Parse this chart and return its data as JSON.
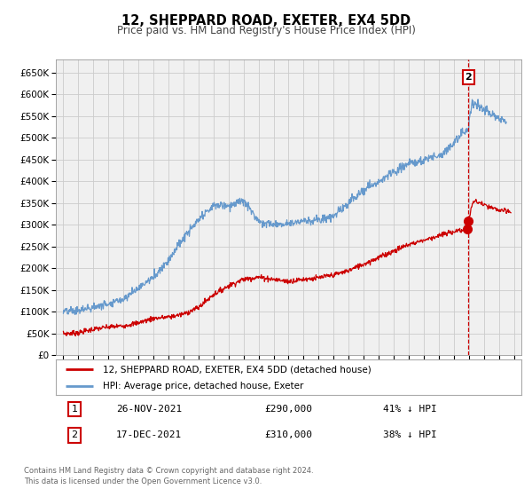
{
  "title": "12, SHEPPARD ROAD, EXETER, EX4 5DD",
  "subtitle": "Price paid vs. HM Land Registry's House Price Index (HPI)",
  "legend_line1": "12, SHEPPARD ROAD, EXETER, EX4 5DD (detached house)",
  "legend_line2": "HPI: Average price, detached house, Exeter",
  "footnote1": "Contains HM Land Registry data © Crown copyright and database right 2024.",
  "footnote2": "This data is licensed under the Open Government Licence v3.0.",
  "annotation_label1": "1",
  "annotation_date1": "26-NOV-2021",
  "annotation_price1": "£290,000",
  "annotation_pct1": "41% ↓ HPI",
  "annotation_label2": "2",
  "annotation_date2": "17-DEC-2021",
  "annotation_price2": "£310,000",
  "annotation_pct2": "38% ↓ HPI",
  "red_color": "#cc0000",
  "blue_color": "#6699cc",
  "grid_color": "#cccccc",
  "bg_color": "#ffffff",
  "plot_bg_color": "#f0f0f0",
  "vline_x": 2021.97,
  "marker1_x": 2021.91,
  "marker1_y": 290000,
  "marker2_x": 2021.97,
  "marker2_y": 310000,
  "ylim": [
    0,
    680000
  ],
  "xlim_start": 1994.5,
  "xlim_end": 2025.5,
  "yticks": [
    0,
    50000,
    100000,
    150000,
    200000,
    250000,
    300000,
    350000,
    400000,
    450000,
    500000,
    550000,
    600000,
    650000
  ],
  "xticks": [
    1995,
    1996,
    1997,
    1998,
    1999,
    2000,
    2001,
    2002,
    2003,
    2004,
    2005,
    2006,
    2007,
    2008,
    2009,
    2010,
    2011,
    2012,
    2013,
    2014,
    2015,
    2016,
    2017,
    2018,
    2019,
    2020,
    2021,
    2022,
    2023,
    2024,
    2025
  ]
}
